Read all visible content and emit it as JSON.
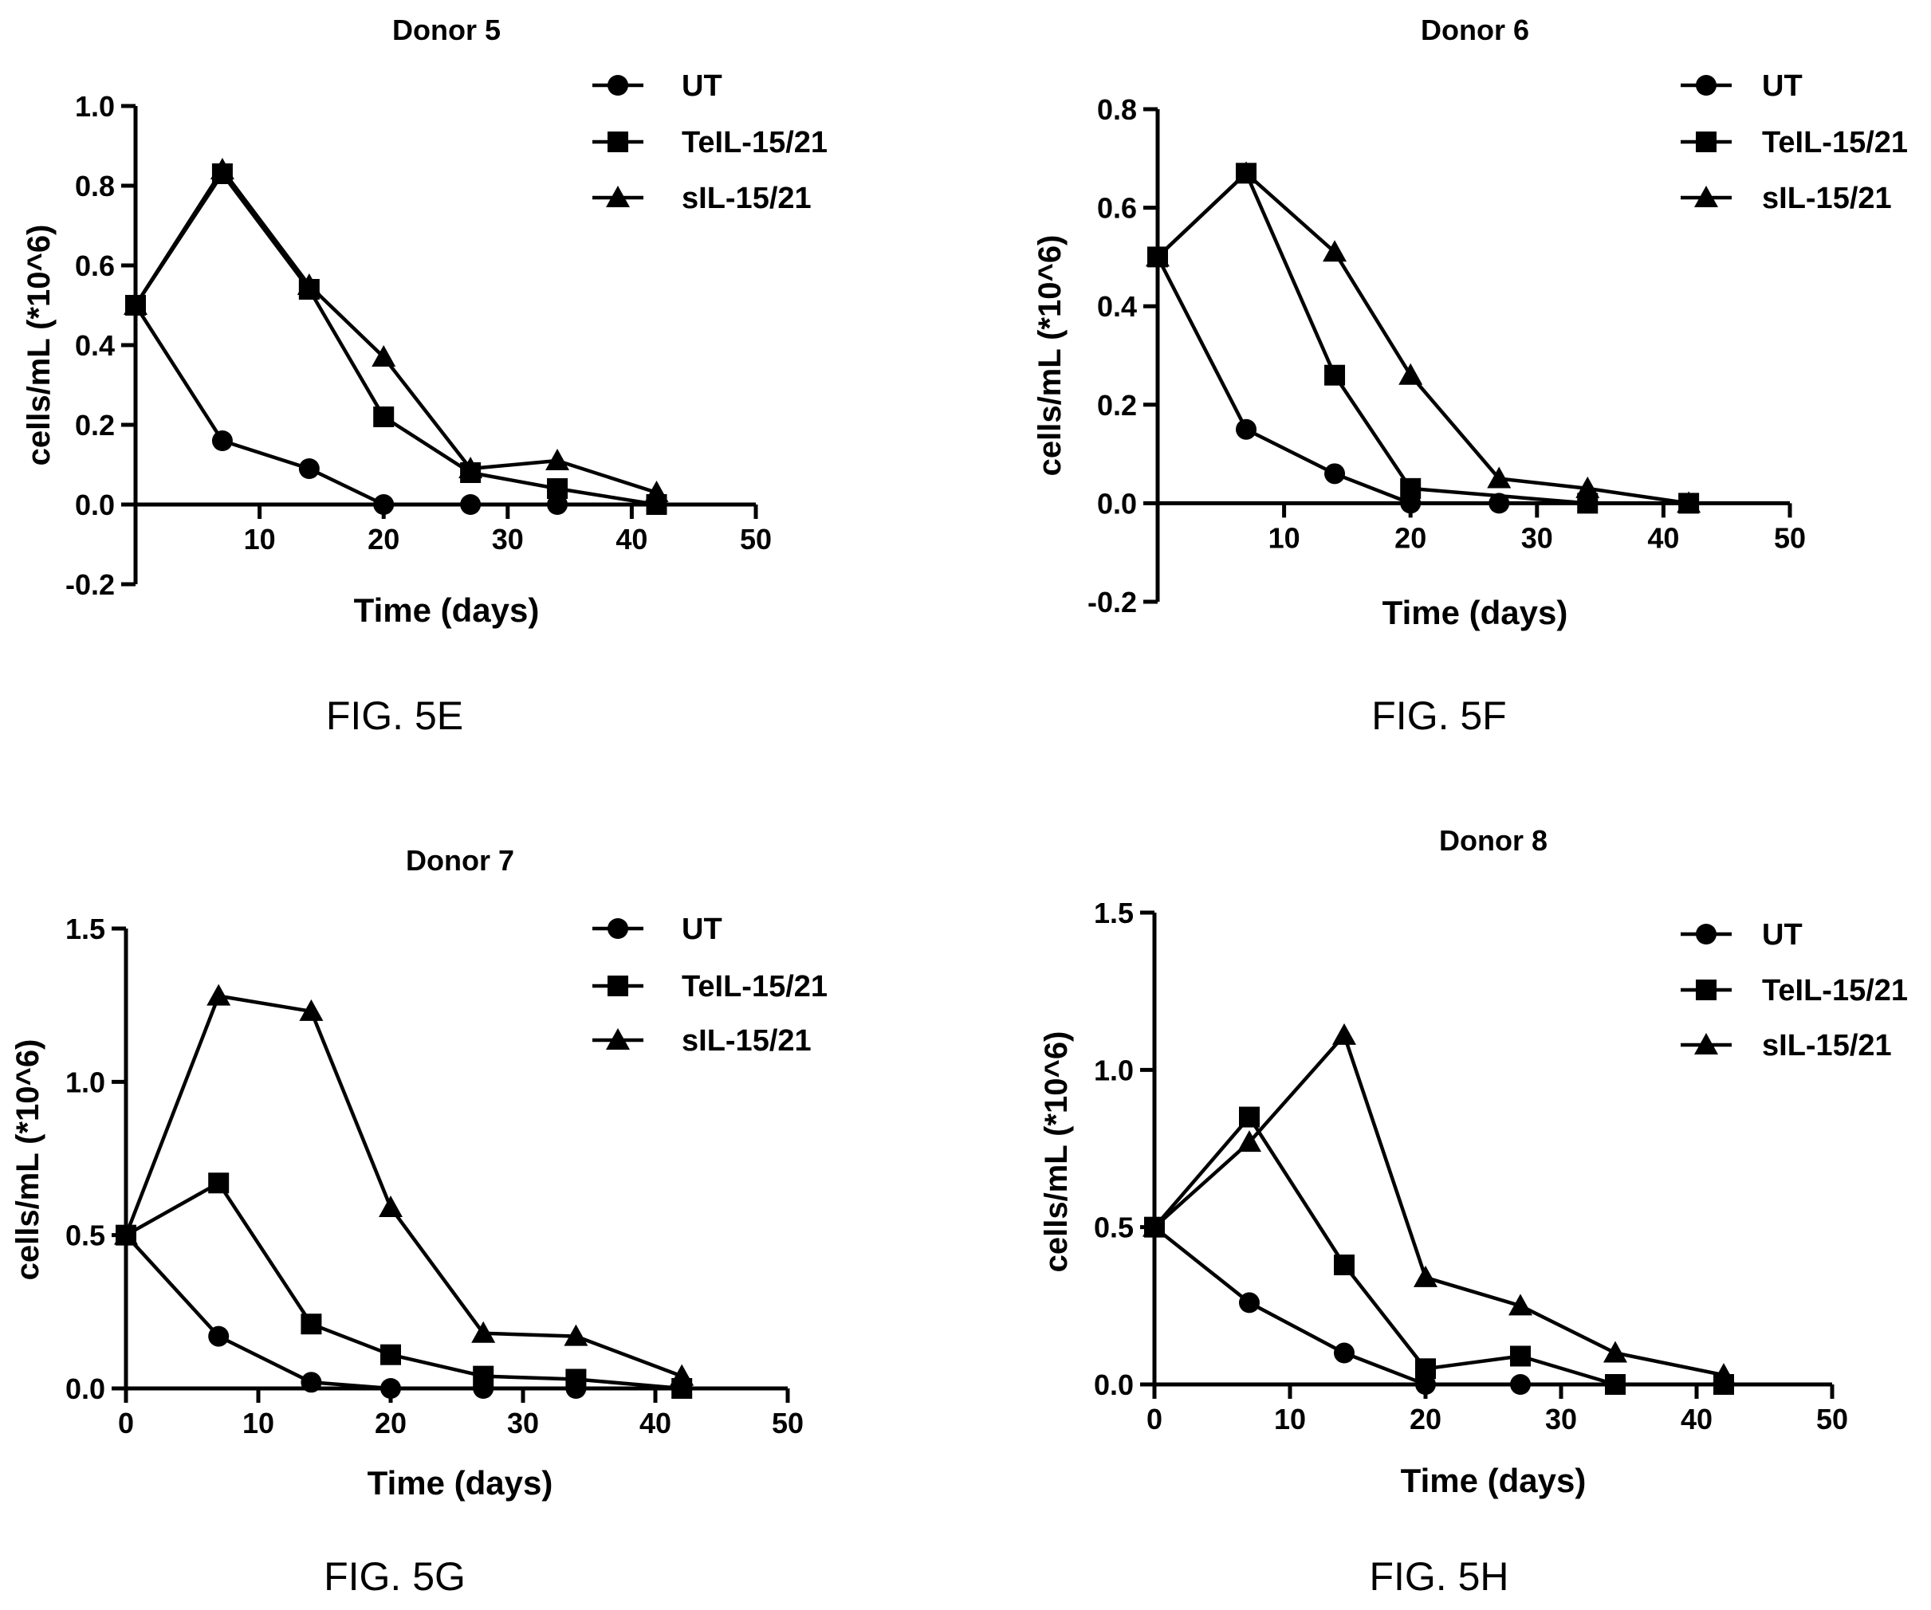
{
  "chart_data": [
    {
      "type": "line",
      "title": "Donor 5",
      "figure_label": "FIG. 5E",
      "xlabel": "Time (days)",
      "ylabel": "cells/mL (*10^6)",
      "xlim": [
        0,
        50
      ],
      "ylim": [
        -0.2,
        1.0
      ],
      "xticks": [
        10,
        20,
        30,
        40,
        50
      ],
      "xtick_labels": [
        "10",
        "20",
        "30",
        "40",
        "50"
      ],
      "yticks": [
        -0.2,
        0.0,
        0.2,
        0.4,
        0.6,
        0.8,
        1.0
      ],
      "ytick_labels": [
        "-0.2",
        "0.0",
        "0.2",
        "0.4",
        "0.6",
        "0.8",
        "1.0"
      ],
      "grid": false,
      "legend_position": "top-right",
      "series": [
        {
          "name": "UT",
          "marker": "circle",
          "x": [
            0,
            7,
            14,
            20,
            27,
            34
          ],
          "y": [
            0.5,
            0.16,
            0.09,
            0.0,
            0.0,
            0.0
          ]
        },
        {
          "name": "TeIL-15/21",
          "marker": "square",
          "x": [
            0,
            7,
            14,
            20,
            27,
            34,
            42
          ],
          "y": [
            0.5,
            0.83,
            0.54,
            0.22,
            0.08,
            0.04,
            0.0
          ]
        },
        {
          "name": "sIL-15/21",
          "marker": "triangle",
          "x": [
            0,
            7,
            14,
            20,
            27,
            34,
            42
          ],
          "y": [
            0.5,
            0.84,
            0.55,
            0.37,
            0.09,
            0.11,
            0.03
          ]
        }
      ]
    },
    {
      "type": "line",
      "title": "Donor 6",
      "figure_label": "FIG. 5F",
      "xlabel": "Time (days)",
      "ylabel": "cells/mL (*10^6)",
      "xlim": [
        0,
        50
      ],
      "ylim": [
        -0.2,
        0.8
      ],
      "xticks": [
        10,
        20,
        30,
        40,
        50
      ],
      "xtick_labels": [
        "10",
        "20",
        "30",
        "40",
        "50"
      ],
      "yticks": [
        -0.2,
        0.0,
        0.2,
        0.4,
        0.6,
        0.8
      ],
      "ytick_labels": [
        "-0.2",
        "0.0",
        "0.2",
        "0.4",
        "0.6",
        "0.8"
      ],
      "grid": false,
      "legend_position": "top-right",
      "series": [
        {
          "name": "UT",
          "marker": "circle",
          "x": [
            0,
            7,
            14,
            20,
            27
          ],
          "y": [
            0.5,
            0.15,
            0.06,
            0.0,
            0.0
          ]
        },
        {
          "name": "TeIL-15/21",
          "marker": "square",
          "x": [
            0,
            7,
            14,
            20,
            34,
            42
          ],
          "y": [
            0.5,
            0.67,
            0.26,
            0.03,
            0.0,
            0.0
          ]
        },
        {
          "name": "sIL-15/21",
          "marker": "triangle",
          "x": [
            0,
            7,
            14,
            20,
            27,
            34,
            42
          ],
          "y": [
            0.5,
            0.67,
            0.51,
            0.26,
            0.05,
            0.03,
            0.0
          ]
        }
      ]
    },
    {
      "type": "line",
      "title": "Donor 7",
      "figure_label": "FIG. 5G",
      "xlabel": "Time (days)",
      "ylabel": "cells/mL (*10^6)",
      "xlim": [
        0,
        50
      ],
      "ylim": [
        0.0,
        1.5
      ],
      "xticks": [
        0,
        10,
        20,
        30,
        40,
        50
      ],
      "xtick_labels": [
        "0",
        "10",
        "20",
        "30",
        "40",
        "50"
      ],
      "yticks": [
        0.0,
        0.5,
        1.0,
        1.5
      ],
      "ytick_labels": [
        "0.0",
        "0.5",
        "1.0",
        "1.5"
      ],
      "grid": false,
      "legend_position": "top-right",
      "series": [
        {
          "name": "UT",
          "marker": "circle",
          "x": [
            0,
            7,
            14,
            20,
            27,
            34
          ],
          "y": [
            0.5,
            0.17,
            0.02,
            0.0,
            0.0,
            0.0
          ]
        },
        {
          "name": "TeIL-15/21",
          "marker": "square",
          "x": [
            0,
            7,
            14,
            20,
            27,
            34,
            42
          ],
          "y": [
            0.5,
            0.67,
            0.21,
            0.11,
            0.04,
            0.03,
            0.0
          ]
        },
        {
          "name": "sIL-15/21",
          "marker": "triangle",
          "x": [
            0,
            7,
            14,
            20,
            27,
            34,
            42
          ],
          "y": [
            0.5,
            1.28,
            1.23,
            0.59,
            0.18,
            0.17,
            0.04
          ]
        }
      ]
    },
    {
      "type": "line",
      "title": "Donor 8",
      "figure_label": "FIG. 5H",
      "xlabel": "Time (days)",
      "ylabel": "cells/mL (*10^6)",
      "xlim": [
        0,
        50
      ],
      "ylim": [
        0.0,
        1.5
      ],
      "xticks": [
        0,
        10,
        20,
        30,
        40,
        50
      ],
      "xtick_labels": [
        "0",
        "10",
        "20",
        "30",
        "40",
        "50"
      ],
      "yticks": [
        0.0,
        0.5,
        1.0,
        1.5
      ],
      "ytick_labels": [
        "0.0",
        "0.5",
        "1.0",
        "1.5"
      ],
      "grid": false,
      "legend_position": "top-right",
      "series": [
        {
          "name": "UT",
          "marker": "circle",
          "x": [
            0,
            7,
            14,
            20,
            27
          ],
          "y": [
            0.5,
            0.26,
            0.1,
            0.0,
            0.0
          ]
        },
        {
          "name": "TeIL-15/21",
          "marker": "square",
          "x": [
            0,
            7,
            14,
            20,
            27,
            34,
            42
          ],
          "y": [
            0.5,
            0.85,
            0.38,
            0.05,
            0.09,
            0.0,
            0.0
          ]
        },
        {
          "name": "sIL-15/21",
          "marker": "triangle",
          "x": [
            0,
            7,
            14,
            20,
            27,
            34,
            42
          ],
          "y": [
            0.5,
            0.77,
            1.11,
            0.34,
            0.25,
            0.1,
            0.03
          ]
        }
      ]
    }
  ]
}
